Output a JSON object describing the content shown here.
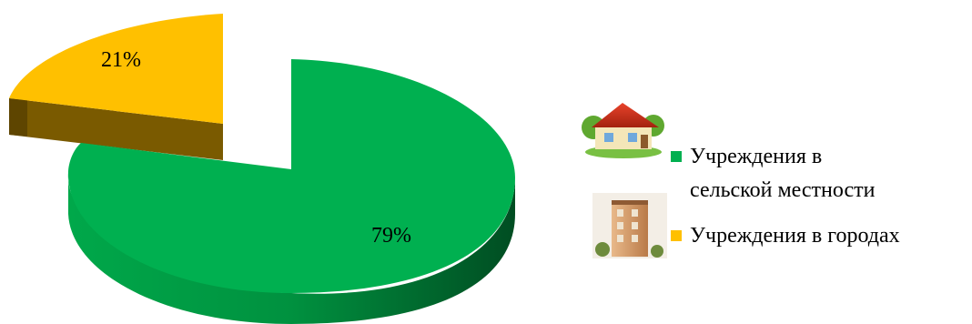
{
  "chart_data": {
    "type": "pie",
    "style": "3d-exploded",
    "slices": [
      {
        "label": "Учреждения в сельской местности",
        "value": 79,
        "value_label": "79%",
        "color": "#00B050",
        "side_color": "#00813A",
        "icon": "rural-house-icon"
      },
      {
        "label": "Учреждения в городах",
        "value": 21,
        "value_label": "21%",
        "color": "#FFC000",
        "side_color": "#7A5A00",
        "icon": "city-building-icon"
      }
    ],
    "legend": {
      "position": "right",
      "items": [
        {
          "lines": [
            "Учреждения в",
            "сельской местности"
          ]
        },
        {
          "lines": [
            "Учреждения в городах"
          ]
        }
      ]
    }
  }
}
